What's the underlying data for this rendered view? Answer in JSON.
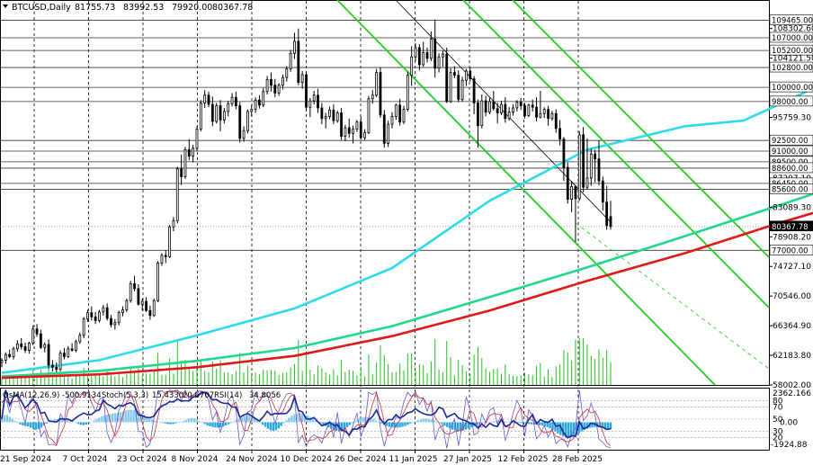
{
  "chart_data": {
    "type": "candlestick",
    "title": "BTCUSD,Daily",
    "ohlc": {
      "open": "81755.73",
      "high": "83992.53",
      "low": "79920.00",
      "close": "80367.78"
    },
    "ylim": [
      58002,
      112200
    ],
    "y_ticks": [
      "58002.00",
      "62183.80",
      "66364.90",
      "70546.00",
      "74727.10",
      "78908.20",
      "83089.30",
      "95759.30",
      "104121.50",
      "108302.60"
    ],
    "level_labels": [
      "109465.00",
      "107000.00",
      "105200.00",
      "102800.00",
      "100000.00",
      "98000.00",
      "92500.00",
      "91000.00",
      "89500.00",
      "88600.00",
      "86450.00",
      "85600.00",
      "80367.78",
      "77000.00"
    ],
    "level_values": [
      109465,
      107000,
      105200,
      102800,
      100000,
      98000,
      92500,
      91000,
      89500,
      88600,
      86450,
      85600,
      80367.78,
      77000
    ],
    "hidden_label": "87207.10",
    "current_price": 80367.78,
    "x_labels": [
      "21 Sep 2024",
      "7 Oct 2024",
      "23 Oct 2024",
      "8 Nov 2024",
      "24 Nov 2024",
      "10 Dec 2024",
      "26 Dec 2024",
      "11 Jan 2025",
      "27 Jan 2025",
      "12 Feb 2025",
      "28 Feb 2025"
    ],
    "candles": [
      [
        61200,
        61800,
        60500,
        61500
      ],
      [
        61500,
        62600,
        61000,
        62300
      ],
      [
        62300,
        63000,
        61800,
        62000
      ],
      [
        62000,
        63400,
        61600,
        63100
      ],
      [
        63100,
        64300,
        62700,
        63800
      ],
      [
        63800,
        64600,
        63000,
        63400
      ],
      [
        63400,
        64000,
        62500,
        62900
      ],
      [
        62900,
        64100,
        62400,
        63900
      ],
      [
        63900,
        66400,
        63600,
        65900
      ],
      [
        65900,
        66600,
        64800,
        65200
      ],
      [
        65200,
        65800,
        63100,
        63300
      ],
      [
        63300,
        64000,
        62600,
        63700
      ],
      [
        63700,
        64400,
        60300,
        60800
      ],
      [
        60800,
        61500,
        59900,
        60500
      ],
      [
        60500,
        61200,
        59800,
        60200
      ],
      [
        60200,
        62900,
        60000,
        62500
      ],
      [
        62500,
        63200,
        61600,
        62000
      ],
      [
        62000,
        63500,
        61800,
        63100
      ],
      [
        63100,
        63900,
        62700,
        62900
      ],
      [
        62900,
        64400,
        62600,
        64100
      ],
      [
        64100,
        65400,
        63800,
        65000
      ],
      [
        65000,
        67600,
        64600,
        67300
      ],
      [
        67300,
        68600,
        66900,
        68200
      ],
      [
        68200,
        69100,
        67100,
        67600
      ],
      [
        67600,
        68300,
        66600,
        67100
      ],
      [
        67100,
        68600,
        66800,
        68300
      ],
      [
        68300,
        69300,
        67800,
        68900
      ],
      [
        68900,
        69500,
        67100,
        67400
      ],
      [
        67400,
        67900,
        66100,
        66500
      ],
      [
        66500,
        67300,
        65800,
        66800
      ],
      [
        66800,
        68500,
        66400,
        68200
      ],
      [
        68200,
        69100,
        67700,
        68600
      ],
      [
        68600,
        70200,
        68300,
        69900
      ],
      [
        69900,
        72700,
        69600,
        72300
      ],
      [
        72300,
        73400,
        71200,
        71600
      ],
      [
        71600,
        72200,
        69200,
        69400
      ],
      [
        69400,
        70200,
        68500,
        69800
      ],
      [
        69800,
        70400,
        68300,
        68500
      ],
      [
        68500,
        69200,
        67200,
        67800
      ],
      [
        67800,
        70200,
        67600,
        69900
      ],
      [
        69900,
        75500,
        69700,
        75200
      ],
      [
        75200,
        76600,
        74800,
        76300
      ],
      [
        76300,
        77000,
        75200,
        76100
      ],
      [
        76100,
        80600,
        75900,
        80300
      ],
      [
        80300,
        81700,
        79700,
        81200
      ],
      [
        81200,
        88800,
        80800,
        88500
      ],
      [
        88500,
        90500,
        86200,
        87400
      ],
      [
        87400,
        91600,
        87100,
        91200
      ],
      [
        91200,
        92700,
        89700,
        90300
      ],
      [
        90300,
        91900,
        89400,
        91400
      ],
      [
        91400,
        94500,
        91000,
        94100
      ],
      [
        94100,
        98200,
        93800,
        97800
      ],
      [
        97800,
        99600,
        97100,
        98900
      ],
      [
        98900,
        99400,
        97200,
        97600
      ],
      [
        97600,
        98700,
        94500,
        95200
      ],
      [
        95200,
        97800,
        94900,
        97400
      ],
      [
        97400,
        98200,
        93800,
        95400
      ],
      [
        95400,
        97100,
        94900,
        96600
      ],
      [
        96600,
        98100,
        95900,
        97700
      ],
      [
        97700,
        99200,
        97300,
        98600
      ],
      [
        98600,
        99400,
        96900,
        97400
      ],
      [
        97400,
        97900,
        92200,
        92800
      ],
      [
        92800,
        94500,
        92300,
        93900
      ],
      [
        93900,
        96900,
        93500,
        96600
      ],
      [
        96600,
        97500,
        95900,
        96900
      ],
      [
        96900,
        98600,
        96400,
        98200
      ],
      [
        98200,
        98900,
        97000,
        97500
      ],
      [
        97500,
        99900,
        97200,
        99400
      ],
      [
        99400,
        101600,
        99000,
        101100
      ],
      [
        101100,
        102100,
        99400,
        100300
      ],
      [
        100300,
        101200,
        98600,
        99200
      ],
      [
        99200,
        100600,
        98800,
        100300
      ],
      [
        100300,
        101800,
        99700,
        101400
      ],
      [
        101400,
        103000,
        100800,
        102600
      ],
      [
        102600,
        105300,
        102200,
        104800
      ],
      [
        104800,
        107700,
        104000,
        106500
      ],
      [
        106500,
        108300,
        100300,
        100700
      ],
      [
        100700,
        102300,
        99800,
        101800
      ],
      [
        101800,
        102200,
        96600,
        97200
      ],
      [
        97200,
        98500,
        95800,
        98100
      ],
      [
        98100,
        99500,
        97600,
        98900
      ],
      [
        98900,
        99800,
        96400,
        97100
      ],
      [
        97100,
        97800,
        94800,
        95600
      ],
      [
        95600,
        96400,
        94200,
        95900
      ],
      [
        95900,
        97300,
        95500,
        96800
      ],
      [
        96800,
        97600,
        94800,
        95300
      ],
      [
        95300,
        96700,
        95000,
        96400
      ],
      [
        96400,
        97100,
        92600,
        93100
      ],
      [
        93100,
        94700,
        92400,
        94300
      ],
      [
        94300,
        95600,
        92900,
        93500
      ],
      [
        93500,
        94600,
        92100,
        94100
      ],
      [
        94100,
        95400,
        93700,
        95100
      ],
      [
        95100,
        95900,
        92600,
        92900
      ],
      [
        92900,
        94100,
        92600,
        93600
      ],
      [
        93600,
        98800,
        93400,
        98400
      ],
      [
        98400,
        99600,
        97700,
        98900
      ],
      [
        98900,
        102600,
        98600,
        102100
      ],
      [
        102100,
        102800,
        95700,
        96100
      ],
      [
        96100,
        96800,
        91500,
        92100
      ],
      [
        92100,
        95300,
        91600,
        94800
      ],
      [
        94800,
        96500,
        94200,
        95900
      ],
      [
        95900,
        97700,
        95400,
        97500
      ],
      [
        97500,
        98400,
        94600,
        95100
      ],
      [
        95100,
        97400,
        94800,
        96900
      ],
      [
        96900,
        102200,
        96600,
        101700
      ],
      [
        101700,
        105800,
        100200,
        104300
      ],
      [
        104300,
        106200,
        103700,
        105600
      ],
      [
        105600,
        106100,
        102400,
        103200
      ],
      [
        103200,
        106400,
        102900,
        104900
      ],
      [
        104900,
        105600,
        103500,
        104100
      ],
      [
        104100,
        107900,
        103700,
        106800
      ],
      [
        106800,
        109600,
        101400,
        102700
      ],
      [
        102700,
        104800,
        102100,
        104300
      ],
      [
        104300,
        105200,
        102900,
        104700
      ],
      [
        104700,
        105600,
        97800,
        98000
      ],
      [
        98000,
        102700,
        97800,
        102100
      ],
      [
        102100,
        103000,
        101300,
        101700
      ],
      [
        101700,
        102400,
        97900,
        98300
      ],
      [
        98300,
        101500,
        98000,
        101000
      ],
      [
        101000,
        102600,
        100200,
        102300
      ],
      [
        102300,
        102800,
        100800,
        101200
      ],
      [
        101200,
        101600,
        96200,
        97800
      ],
      [
        97800,
        98300,
        91500,
        94600
      ],
      [
        94600,
        99000,
        94200,
        98100
      ],
      [
        98100,
        98800,
        95900,
        96500
      ],
      [
        96500,
        98500,
        96200,
        98000
      ],
      [
        98000,
        99500,
        96700,
        97000
      ],
      [
        97000,
        97800,
        94900,
        96400
      ],
      [
        96400,
        98100,
        96100,
        97600
      ],
      [
        97600,
        98600,
        95000,
        95600
      ],
      [
        95600,
        97200,
        95300,
        96500
      ],
      [
        96500,
        97600,
        96000,
        97100
      ],
      [
        97100,
        98200,
        96600,
        97900
      ],
      [
        97900,
        98500,
        96800,
        97400
      ],
      [
        97400,
        97800,
        95600,
        96000
      ],
      [
        96000,
        97700,
        95800,
        97500
      ],
      [
        97500,
        98300,
        96600,
        97200
      ],
      [
        97200,
        98600,
        95200,
        95800
      ],
      [
        95800,
        99500,
        95600,
        96300
      ],
      [
        96300,
        97200,
        95700,
        96900
      ],
      [
        96900,
        97400,
        94600,
        95600
      ],
      [
        95600,
        96700,
        95300,
        96300
      ],
      [
        96300,
        96900,
        93600,
        94200
      ],
      [
        94200,
        95400,
        91800,
        92700
      ],
      [
        92700,
        93000,
        86800,
        88700
      ],
      [
        88700,
        89400,
        83600,
        84200
      ],
      [
        84200,
        86800,
        82400,
        86000
      ],
      [
        86000,
        86200,
        78200,
        84300
      ],
      [
        84300,
        93800,
        84000,
        93300
      ],
      [
        93300,
        94400,
        85200,
        85900
      ],
      [
        85900,
        92800,
        85600,
        87200
      ],
      [
        87200,
        91300,
        86100,
        90600
      ],
      [
        90600,
        91200,
        86600,
        89900
      ],
      [
        89900,
        92500,
        86200,
        86800
      ],
      [
        86800,
        87400,
        82600,
        83800
      ],
      [
        83800,
        86100,
        79900,
        80500
      ],
      [
        81755.73,
        83992.53,
        79920,
        80367.78
      ]
    ],
    "series": [
      {
        "name": "MA50",
        "color": "#2ddcec",
        "points": [
          [
            0,
            59700
          ],
          [
            25,
            61500
          ],
          [
            50,
            65000
          ],
          [
            75,
            68800
          ],
          [
            100,
            74500
          ],
          [
            125,
            84000
          ],
          [
            150,
            91200
          ],
          [
            175,
            94500
          ],
          [
            190,
            95300
          ],
          [
            200,
            97800
          ],
          [
            210,
            100400
          ],
          [
            220,
            99600
          ],
          [
            230,
            98800
          ],
          [
            240,
            96000
          ],
          [
            248,
            93600
          ]
        ]
      },
      {
        "name": "MA144",
        "color": "#20d88a",
        "points": [
          [
            0,
            59200
          ],
          [
            25,
            60000
          ],
          [
            50,
            61400
          ],
          [
            75,
            63200
          ],
          [
            100,
            66300
          ],
          [
            125,
            70400
          ],
          [
            150,
            74600
          ],
          [
            175,
            79000
          ],
          [
            200,
            83500
          ],
          [
            220,
            87200
          ],
          [
            240,
            88800
          ],
          [
            248,
            88900
          ]
        ]
      },
      {
        "name": "MA200",
        "color": "#e01818",
        "points": [
          [
            0,
            59000
          ],
          [
            25,
            59500
          ],
          [
            50,
            60500
          ],
          [
            75,
            62100
          ],
          [
            100,
            64900
          ],
          [
            125,
            68500
          ],
          [
            150,
            72700
          ],
          [
            175,
            76600
          ],
          [
            200,
            81000
          ],
          [
            220,
            84200
          ],
          [
            240,
            86100
          ],
          [
            248,
            86000
          ]
        ]
      }
    ],
    "osma": {
      "label": "OsMA(12,26,9)",
      "value": "-500.9134",
      "ylim": [
        -1924.88,
        2362.166
      ],
      "ticks": [
        "2362.166",
        "-1924.88"
      ],
      "histogram": [
        360,
        480,
        520,
        390,
        220,
        90,
        -40,
        -150,
        -220,
        -270,
        -300,
        -380,
        -460,
        -520,
        -480,
        -370,
        -220,
        -90,
        30,
        120,
        180,
        220,
        260,
        280,
        260,
        200,
        130,
        60,
        -30,
        -120,
        -180,
        -200,
        -160,
        -90,
        10,
        110,
        220,
        330,
        420,
        500,
        520,
        560,
        600,
        640,
        660,
        700,
        760,
        820,
        860,
        880,
        870,
        840,
        760,
        640,
        500,
        380,
        260,
        180,
        120,
        60,
        20,
        -40,
        -90,
        -120,
        -140,
        -120,
        -80,
        -20,
        40,
        100,
        180,
        260,
        300,
        280,
        200,
        100,
        -20,
        -120,
        -220,
        -280,
        -330,
        -360,
        -380,
        -360,
        -300,
        -220,
        -130,
        -40,
        60,
        160,
        260,
        360,
        440,
        480,
        460,
        380,
        260,
        120,
        -20,
        -180,
        -320,
        -460,
        -560,
        -600,
        -560,
        -440,
        -260,
        -60,
        140,
        320,
        460,
        560,
        620,
        640,
        620,
        560,
        480,
        380,
        260,
        140,
        40,
        -60,
        -160,
        -260,
        -360,
        -460,
        -540,
        -600,
        -640,
        -600,
        -500,
        -360,
        -200,
        -60,
        80,
        200,
        300,
        360,
        380,
        360,
        300,
        220,
        120,
        20,
        -80,
        -180,
        -260,
        -320,
        -360,
        -380,
        -380,
        -360,
        -320,
        -260,
        -180,
        -100,
        -20,
        60,
        140,
        200,
        240,
        260,
        240,
        200,
        140,
        60,
        -40,
        -140,
        -240,
        -340,
        -440,
        -520,
        -580,
        -620,
        -620,
        -580,
        -520,
        -440,
        -360,
        -280,
        -200,
        -120,
        -60,
        -20,
        20,
        40,
        60,
        80,
        100,
        100,
        80,
        60,
        40,
        20,
        0,
        -20,
        -40,
        -60,
        -80,
        -100,
        -120,
        -140,
        -160,
        -180,
        -200,
        -240,
        -280,
        -340,
        -420,
        -520,
        -640,
        -780,
        -900,
        -1000,
        -1060,
        -1080,
        -1050,
        -980,
        -880,
        -760,
        -640,
        -540,
        -460,
        -400,
        -360,
        -340,
        -340,
        -360,
        -380,
        -420,
        -460,
        -500
      ]
    },
    "stoch": {
      "label": "Stoch(5,3,3)",
      "k": "15.4330",
      "d": "20.6707"
    },
    "rsi": {
      "label": "RSI(14)",
      "value": "34.8056"
    },
    "osc_levels": [
      "80",
      "70",
      "50",
      "30",
      "20"
    ],
    "osc_value_label": "0.00"
  }
}
